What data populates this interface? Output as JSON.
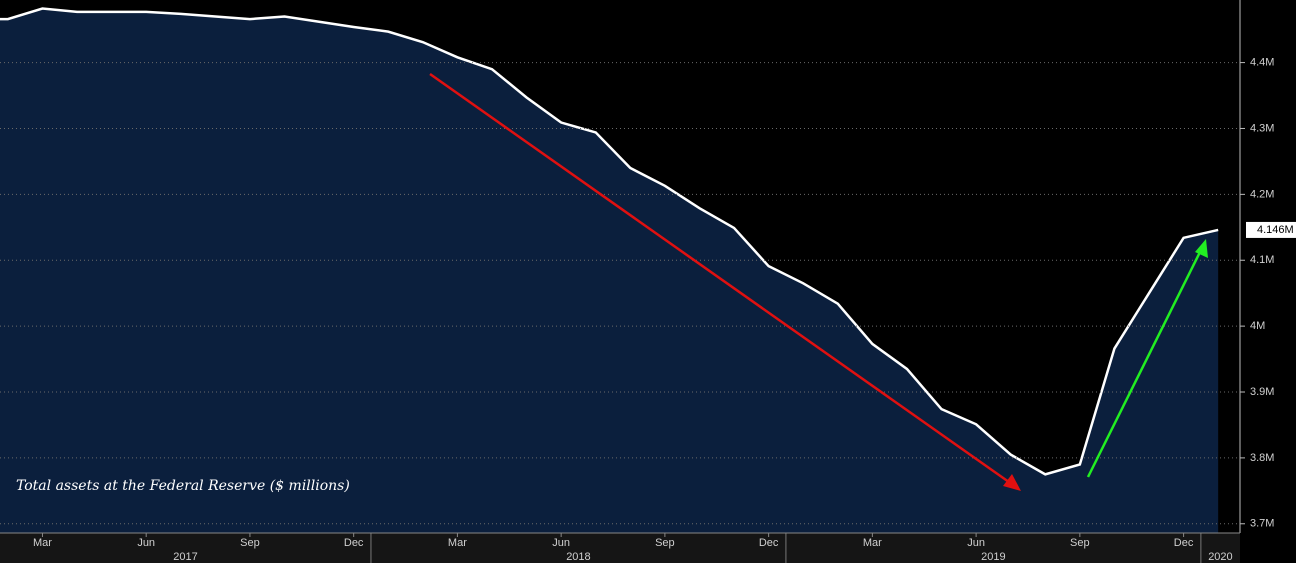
{
  "chart_data": {
    "type": "area",
    "title": "Total assets at the Federal Reserve ($ millions)",
    "x": [
      "2017-02",
      "2017-03",
      "2017-04",
      "2017-05",
      "2017-06",
      "2017-07",
      "2017-08",
      "2017-09",
      "2017-10",
      "2017-11",
      "2017-12",
      "2018-01",
      "2018-02",
      "2018-03",
      "2018-04",
      "2018-05",
      "2018-06",
      "2018-07",
      "2018-08",
      "2018-09",
      "2018-10",
      "2018-11",
      "2018-12",
      "2019-01",
      "2019-02",
      "2019-03",
      "2019-04",
      "2019-05",
      "2019-06",
      "2019-07",
      "2019-08",
      "2019-09",
      "2019-10",
      "2019-11",
      "2019-12",
      "2020-01"
    ],
    "series": [
      {
        "color": "#ffffff",
        "fill": "#0b1f3d",
        "values": [
          4466000,
          4482000,
          4477000,
          4477000,
          4477000,
          4474000,
          4470000,
          4466000,
          4470000,
          4462000,
          4454000,
          4447000,
          4431000,
          4408000,
          4390000,
          4347000,
          4309000,
          4294000,
          4240000,
          4213000,
          4179000,
          4149000,
          4091000,
          4065000,
          4034000,
          3973000,
          3935000,
          3874000,
          3851000,
          3805000,
          3775000,
          3790000,
          3966000,
          4050000,
          4134000,
          4146000
        ]
      }
    ],
    "last_value_label": "4.146M",
    "ylim": [
      3686000,
      4495000
    ],
    "yticks": [
      {
        "value": 3700000,
        "label": "3.7M"
      },
      {
        "value": 3800000,
        "label": "3.8M"
      },
      {
        "value": 3900000,
        "label": "3.9M"
      },
      {
        "value": 4000000,
        "label": "4M"
      },
      {
        "value": 4100000,
        "label": "4.1M"
      },
      {
        "value": 4200000,
        "label": "4.2M"
      },
      {
        "value": 4300000,
        "label": "4.3M"
      },
      {
        "value": 4400000,
        "label": "4.4M"
      }
    ],
    "xticks": [
      {
        "value": "2017-03",
        "label": "Mar"
      },
      {
        "value": "2017-06",
        "label": "Jun"
      },
      {
        "value": "2017-09",
        "label": "Sep"
      },
      {
        "value": "2017-12",
        "label": "Dec"
      },
      {
        "value": "2018-03",
        "label": "Mar"
      },
      {
        "value": "2018-06",
        "label": "Jun"
      },
      {
        "value": "2018-09",
        "label": "Sep"
      },
      {
        "value": "2018-12",
        "label": "Dec"
      },
      {
        "value": "2019-03",
        "label": "Mar"
      },
      {
        "value": "2019-06",
        "label": "Jun"
      },
      {
        "value": "2019-09",
        "label": "Sep"
      },
      {
        "value": "2019-12",
        "label": "Dec"
      }
    ],
    "years": [
      2017,
      2018,
      2019,
      2020
    ],
    "grid": true
  }
}
